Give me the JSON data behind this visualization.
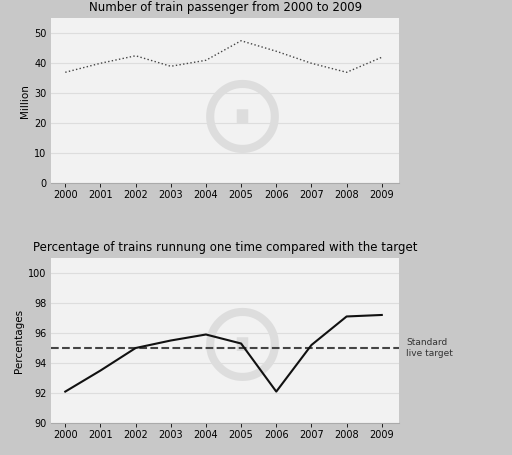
{
  "chart1": {
    "title": "Number of train passenger from 2000 to 2009",
    "years": [
      2000,
      2001,
      2002,
      2003,
      2004,
      2005,
      2006,
      2007,
      2008,
      2009
    ],
    "values": [
      37,
      40,
      42.5,
      39,
      41,
      47.5,
      44,
      40,
      37,
      42
    ],
    "ylabel": "Million",
    "ylim": [
      0,
      55
    ],
    "yticks": [
      0,
      10,
      20,
      30,
      40,
      50
    ],
    "line_color": "#444444",
    "panel_color": "#f2f2f2"
  },
  "chart2": {
    "title": "Percentage of trains runnung one time compared with the target",
    "years": [
      2000,
      2001,
      2002,
      2003,
      2004,
      2005,
      2006,
      2007,
      2008,
      2009
    ],
    "values": [
      92.1,
      93.5,
      95.0,
      95.5,
      95.9,
      95.3,
      92.1,
      95.2,
      97.1,
      97.2
    ],
    "ylabel": "Percentages",
    "ylim": [
      90,
      101
    ],
    "yticks": [
      90,
      92,
      94,
      96,
      98,
      100
    ],
    "target_value": 95.0,
    "target_label": "Standard\nlive target",
    "line_color": "#111111",
    "target_color": "#444444",
    "panel_color": "#f2f2f2"
  },
  "fig_bg_color": "#c8c8c8",
  "grid_color": "#dddddd",
  "title_fontsize": 8.5,
  "tick_fontsize": 7,
  "ylabel_fontsize": 7.5
}
